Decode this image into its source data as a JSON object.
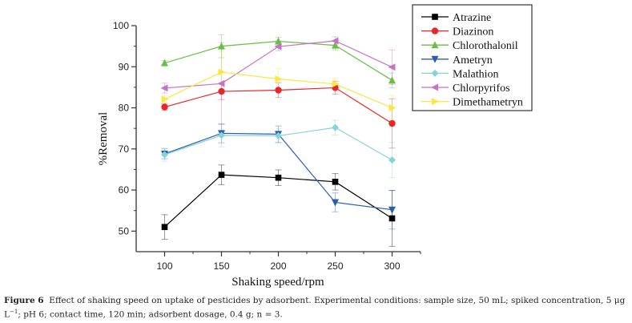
{
  "chart_data": {
    "type": "line",
    "title": "",
    "xlabel": "Shaking speed/rpm",
    "ylabel": "%Removal",
    "x": [
      100,
      150,
      200,
      250,
      300
    ],
    "xlim": [
      75,
      325
    ],
    "ylim": [
      45,
      100
    ],
    "xticks": [
      100,
      150,
      200,
      250,
      300
    ],
    "yticks": [
      50,
      60,
      70,
      80,
      90,
      100
    ],
    "grid": false,
    "legend_position": "top-right (outside plot)",
    "series": [
      {
        "name": "Atrazine",
        "color": "#000000",
        "marker": "square",
        "values": [
          51.0,
          63.7,
          63.0,
          62.0,
          53.1
        ],
        "errors": [
          3.0,
          2.4,
          1.9,
          2.0,
          6.8
        ]
      },
      {
        "name": "Diazinon",
        "color": "#e8262a",
        "marker": "circle",
        "values": [
          80.2,
          84.0,
          84.3,
          84.9,
          76.2
        ],
        "errors": [
          0.8,
          2.0,
          1.8,
          1.6,
          6.0
        ]
      },
      {
        "name": "Chlorothalonil",
        "color": "#6dbd45",
        "marker": "triangle-up",
        "values": [
          90.9,
          95.0,
          96.2,
          95.2,
          86.7
        ],
        "errors": [
          0.6,
          2.8,
          1.0,
          1.2,
          1.8
        ]
      },
      {
        "name": "Ametryn",
        "color": "#2b5ea8",
        "marker": "triangle-down",
        "values": [
          68.8,
          73.8,
          73.6,
          57.0,
          55.2
        ],
        "errors": [
          1.2,
          2.3,
          2.0,
          2.3,
          4.7
        ]
      },
      {
        "name": "Malathion",
        "color": "#86d3d6",
        "marker": "diamond",
        "values": [
          68.6,
          73.3,
          73.2,
          75.2,
          67.3
        ],
        "errors": [
          1.6,
          2.8,
          1.8,
          1.8,
          4.3
        ]
      },
      {
        "name": "Chlorpyrifos",
        "color": "#c474c4",
        "marker": "triangle-left",
        "values": [
          84.8,
          85.9,
          94.9,
          96.3,
          89.9
        ],
        "errors": [
          1.2,
          10.0,
          1.0,
          1.0,
          4.2
        ]
      },
      {
        "name": "Dimethametryn",
        "color": "#f8e840",
        "marker": "triangle-right",
        "values": [
          82.1,
          88.7,
          87.0,
          85.8,
          80.0
        ],
        "errors": [
          0.8,
          5.0,
          2.6,
          1.4,
          3.0
        ]
      }
    ]
  },
  "caption": {
    "label": "Figure 6",
    "text": "Effect of shaking speed on uptake of pesticides by adsorbent. Experimental conditions: sample size, 50  mL; spiked concentration, 5 μg L",
    "superscript": "−1",
    "text2": "; pH 6; contact time, 120 min; adsorbent dosage, 0.4 g; n = 3."
  }
}
